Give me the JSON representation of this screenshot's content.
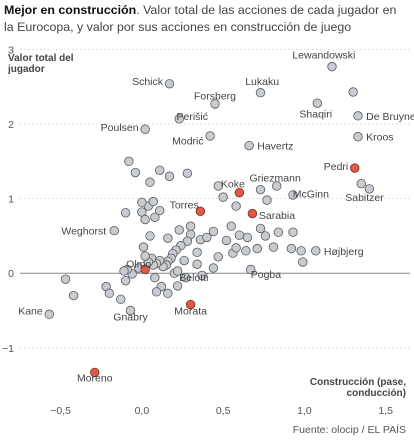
{
  "header": {
    "title_bold": "Mejor en construcción",
    "title_rest": ". Valor total de las acciones de cada jugador en la Eurocopa, y valor por sus acciones en construcción de juego"
  },
  "source": "Fuente: olocip / EL PAÍS",
  "colors": {
    "grey_point": "#c8ccd1",
    "grey_stroke": "#555b61",
    "highlight_point": "#e05a45",
    "highlight_stroke": "#7a2a1e",
    "grid": "#cfcfcf",
    "zero": "#888888"
  },
  "chart_data": {
    "type": "scatter",
    "ylabel_lines": [
      "Valor total del",
      "jugador"
    ],
    "xlabel_lines": [
      "Construcción (pase,",
      "conducción)"
    ],
    "xlim": [
      -0.75,
      1.65
    ],
    "ylim": [
      -1.7,
      3.1
    ],
    "xticks": [
      -0.5,
      0.0,
      0.5,
      1.0,
      1.5
    ],
    "xtick_labels": [
      "−0,5",
      "0,0",
      "0,5",
      "1,0",
      "1,5"
    ],
    "yticks": [
      -1,
      0,
      1,
      2,
      3
    ],
    "ytick_labels": [
      "−1",
      "0",
      "1",
      "2",
      "3"
    ],
    "grid": "horizontal",
    "labeled_points": [
      {
        "name": "Lewandowski",
        "x": 1.17,
        "y": 2.77,
        "highlight": false,
        "lx": 1.12,
        "ly": 2.93,
        "anchor": "middle"
      },
      {
        "name": "Lukaku",
        "x": 0.73,
        "y": 2.42,
        "highlight": false,
        "lx": 0.74,
        "ly": 2.58,
        "anchor": "middle"
      },
      {
        "name": "Schick",
        "x": 0.17,
        "y": 2.54,
        "highlight": false,
        "lx": 0.13,
        "ly": 2.58,
        "anchor": "end"
      },
      {
        "name": "Forsberg",
        "x": 0.45,
        "y": 2.27,
        "highlight": false,
        "lx": 0.45,
        "ly": 2.38,
        "anchor": "middle"
      },
      {
        "name": "Shaqiri",
        "x": 1.08,
        "y": 2.28,
        "highlight": false,
        "lx": 1.07,
        "ly": 2.14,
        "anchor": "middle"
      },
      {
        "name": "De Bruyne",
        "x": 1.33,
        "y": 2.11,
        "highlight": false,
        "lx": 1.38,
        "ly": 2.11,
        "anchor": "start"
      },
      {
        "name": "Perišić",
        "x": 0.23,
        "y": 2.07,
        "highlight": false,
        "lx": 0.31,
        "ly": 2.11,
        "anchor": "middle"
      },
      {
        "name": "Poulsen",
        "x": 0.02,
        "y": 1.93,
        "highlight": false,
        "lx": -0.02,
        "ly": 1.96,
        "anchor": "end"
      },
      {
        "name": "Kroos",
        "x": 1.33,
        "y": 1.83,
        "highlight": false,
        "lx": 1.38,
        "ly": 1.83,
        "anchor": "start"
      },
      {
        "name": "Modrić",
        "x": 0.42,
        "y": 1.84,
        "highlight": false,
        "lx": 0.38,
        "ly": 1.78,
        "anchor": "end"
      },
      {
        "name": "Havertz",
        "x": 0.66,
        "y": 1.71,
        "highlight": false,
        "lx": 0.71,
        "ly": 1.71,
        "anchor": "start"
      },
      {
        "name": "Pedri",
        "x": 1.31,
        "y": 1.41,
        "highlight": true,
        "lx": 1.27,
        "ly": 1.44,
        "anchor": "end"
      },
      {
        "name": "Sabitzer",
        "x": 1.4,
        "y": 1.13,
        "highlight": false,
        "lx": 1.37,
        "ly": 1.02,
        "anchor": "middle"
      },
      {
        "name": "Griezmann",
        "x": 0.83,
        "y": 1.17,
        "highlight": false,
        "lx": 0.82,
        "ly": 1.28,
        "anchor": "middle"
      },
      {
        "name": "Koke",
        "x": 0.6,
        "y": 1.08,
        "highlight": true,
        "lx": 0.56,
        "ly": 1.2,
        "anchor": "middle"
      },
      {
        "name": "McGinn",
        "x": 0.93,
        "y": 1.05,
        "highlight": false,
        "lx": 1.04,
        "ly": 1.07,
        "anchor": "middle"
      },
      {
        "name": "Torres",
        "x": 0.36,
        "y": 0.83,
        "highlight": true,
        "lx": 0.35,
        "ly": 0.92,
        "anchor": "end"
      },
      {
        "name": "Sarabia",
        "x": 0.68,
        "y": 0.8,
        "highlight": true,
        "lx": 0.72,
        "ly": 0.78,
        "anchor": "start"
      },
      {
        "name": "Weghorst",
        "x": -0.17,
        "y": 0.57,
        "highlight": false,
        "lx": -0.22,
        "ly": 0.57,
        "anchor": "end"
      },
      {
        "name": "Højbjerg",
        "x": 1.07,
        "y": 0.3,
        "highlight": false,
        "lx": 1.12,
        "ly": 0.3,
        "anchor": "start"
      },
      {
        "name": "Olmo",
        "x": 0.02,
        "y": 0.05,
        "highlight": true,
        "lx": -0.02,
        "ly": 0.13,
        "anchor": "middle"
      },
      {
        "name": "Belotti",
        "x": 0.22,
        "y": 0.03,
        "highlight": false,
        "lx": 0.23,
        "ly": -0.05,
        "anchor": "start"
      },
      {
        "name": "Pogba",
        "x": 0.67,
        "y": 0.05,
        "highlight": false,
        "lx": 0.67,
        "ly": -0.01,
        "anchor": "start"
      },
      {
        "name": "Morata",
        "x": 0.3,
        "y": -0.42,
        "highlight": true,
        "lx": 0.3,
        "ly": -0.5,
        "anchor": "middle"
      },
      {
        "name": "Gnabry",
        "x": -0.07,
        "y": -0.5,
        "highlight": false,
        "lx": -0.07,
        "ly": -0.58,
        "anchor": "middle"
      },
      {
        "name": "Kane",
        "x": -0.57,
        "y": -0.55,
        "highlight": false,
        "lx": -0.61,
        "ly": -0.5,
        "anchor": "end"
      },
      {
        "name": "Moreno",
        "x": -0.29,
        "y": -1.33,
        "highlight": true,
        "lx": -0.29,
        "ly": -1.4,
        "anchor": "middle"
      }
    ],
    "other_points": [
      [
        1.3,
        2.43
      ],
      [
        1.35,
        1.2
      ],
      [
        -0.08,
        1.5
      ],
      [
        -0.04,
        1.35
      ],
      [
        0.05,
        1.22
      ],
      [
        0.11,
        1.38
      ],
      [
        0.17,
        1.3
      ],
      [
        0.28,
        1.34
      ],
      [
        0.47,
        1.17
      ],
      [
        0.5,
        1.02
      ],
      [
        0.58,
        0.9
      ],
      [
        0.73,
        1.12
      ],
      [
        0.77,
        0.98
      ],
      [
        0.44,
        0.56
      ],
      [
        0.52,
        0.44
      ],
      [
        0.55,
        0.63
      ],
      [
        0.6,
        0.51
      ],
      [
        0.65,
        0.48
      ],
      [
        0.76,
        0.5
      ],
      [
        0.84,
        0.55
      ],
      [
        0.93,
        0.55
      ],
      [
        0.81,
        0.35
      ],
      [
        0.92,
        0.33
      ],
      [
        0.98,
        0.3
      ],
      [
        0.99,
        0.15
      ],
      [
        0.56,
        0.27
      ],
      [
        0.58,
        0.34
      ],
      [
        0.64,
        0.3
      ],
      [
        0.71,
        0.33
      ],
      [
        0.73,
        0.6
      ],
      [
        0.44,
        0.07
      ],
      [
        0.47,
        0.22
      ],
      [
        0.34,
        0.28
      ],
      [
        0.36,
        0.45
      ],
      [
        0.4,
        0.48
      ],
      [
        0.16,
        0.47
      ],
      [
        0.23,
        0.58
      ],
      [
        0.3,
        0.63
      ],
      [
        0.3,
        0.52
      ],
      [
        0.28,
        0.43
      ],
      [
        0.24,
        0.37
      ],
      [
        0.21,
        0.31
      ],
      [
        0.19,
        0.26
      ],
      [
        0.18,
        0.2
      ],
      [
        0.16,
        0.16
      ],
      [
        0.15,
        0.11
      ],
      [
        0.13,
        0.09
      ],
      [
        0.11,
        0.17
      ],
      [
        0.09,
        0.13
      ],
      [
        0.07,
        0.11
      ],
      [
        0.06,
        0.2
      ],
      [
        0.04,
        0.15
      ],
      [
        0.02,
        0.23
      ],
      [
        0.01,
        0.35
      ],
      [
        0.05,
        0.5
      ],
      [
        0.08,
        0.75
      ],
      [
        0.11,
        0.84
      ],
      [
        0.04,
        0.9
      ],
      [
        0.0,
        0.82
      ],
      [
        0.02,
        0.72
      ],
      [
        0.0,
        0.95
      ],
      [
        0.07,
        0.96
      ],
      [
        -0.1,
        0.81
      ],
      [
        -0.02,
        0.07
      ],
      [
        -0.06,
        -0.01
      ],
      [
        -0.09,
        0.05
      ],
      [
        -0.1,
        -0.1
      ],
      [
        -0.11,
        0.03
      ],
      [
        0.08,
        -0.06
      ],
      [
        0.12,
        -0.18
      ],
      [
        0.09,
        -0.25
      ],
      [
        0.16,
        -0.27
      ],
      [
        0.22,
        -0.17
      ],
      [
        0.27,
        -0.06
      ],
      [
        0.37,
        -0.03
      ],
      [
        -0.22,
        -0.18
      ],
      [
        -0.2,
        -0.27
      ],
      [
        -0.42,
        -0.3
      ],
      [
        -0.47,
        -0.08
      ],
      [
        -0.13,
        -0.35
      ],
      [
        0.2,
        0.0
      ],
      [
        0.34,
        0.12
      ],
      [
        0.26,
        0.17
      ]
    ]
  }
}
